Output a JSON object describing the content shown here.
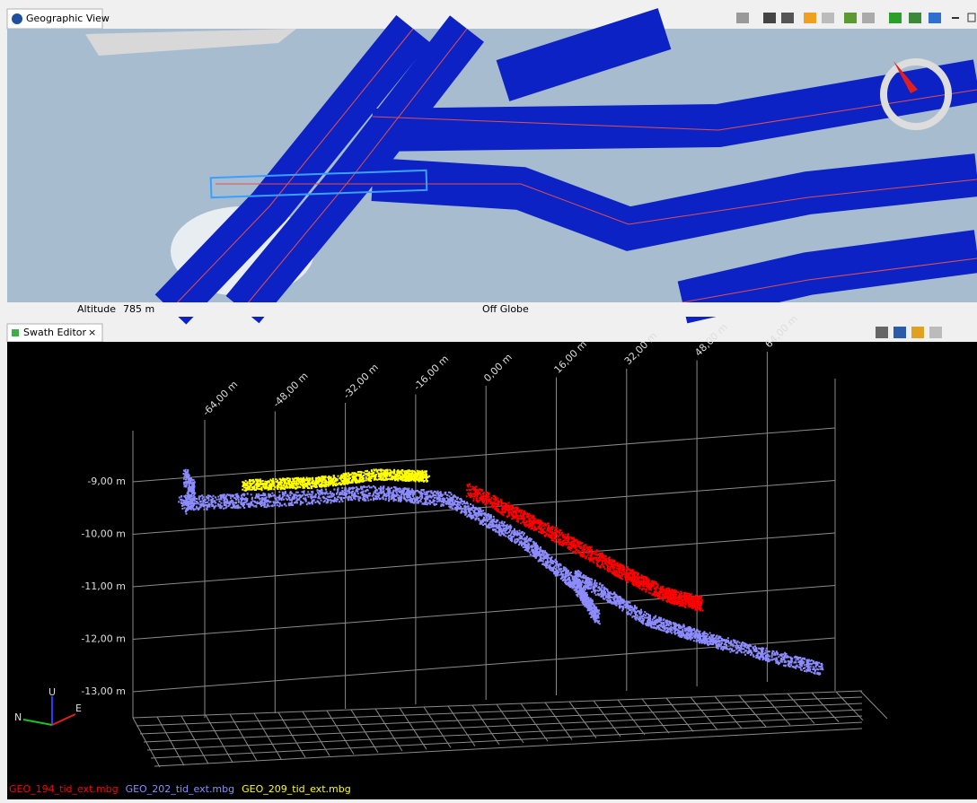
{
  "geographic_view": {
    "tab": "Geographic View",
    "status": {
      "altitude_label": "Altitude",
      "altitude_value": "785 m",
      "globe": "Off Globe"
    }
  },
  "swath_editor": {
    "tab": "Swath Editor",
    "x_axis_labels": [
      "-64,00 m",
      "-48,00 m",
      "-32,00 m",
      "-16,00 m",
      "0,00 m",
      "16,00 m",
      "32,00 m",
      "48,00 m",
      "64,00 m"
    ],
    "depth_labels": [
      "-9,00 m",
      "-10,00 m",
      "-11,00 m",
      "-12,00 m",
      "-13,00 m"
    ],
    "axis_gizmo": [
      "N",
      "E",
      "U"
    ],
    "legend": [
      {
        "name": "GEO_194_tid_ext.mbg",
        "color": "#ff0000"
      },
      {
        "name": "GEO_202_tid_ext.mbg",
        "color": "#8c8cff"
      },
      {
        "name": "GEO_209_tid_ext.mbg",
        "color": "#ffff00"
      }
    ]
  }
}
